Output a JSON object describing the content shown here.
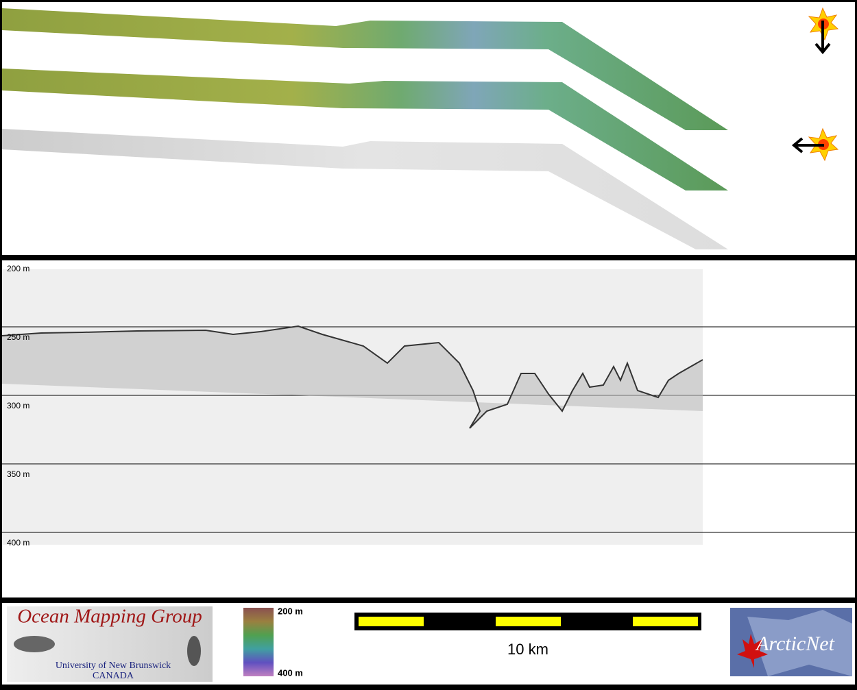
{
  "profile": {
    "depth_labels": [
      "200 m",
      "250 m",
      "300 m",
      "350 m",
      "400 m"
    ]
  },
  "footer": {
    "logo_title": "Ocean Mapping Group",
    "logo_line1": "University of New Brunswick",
    "logo_line2": "CANADA",
    "colorbar_top": "200 m",
    "colorbar_bottom": "400 m",
    "scale_label": "10 km",
    "partner": "ArcticNet"
  }
}
